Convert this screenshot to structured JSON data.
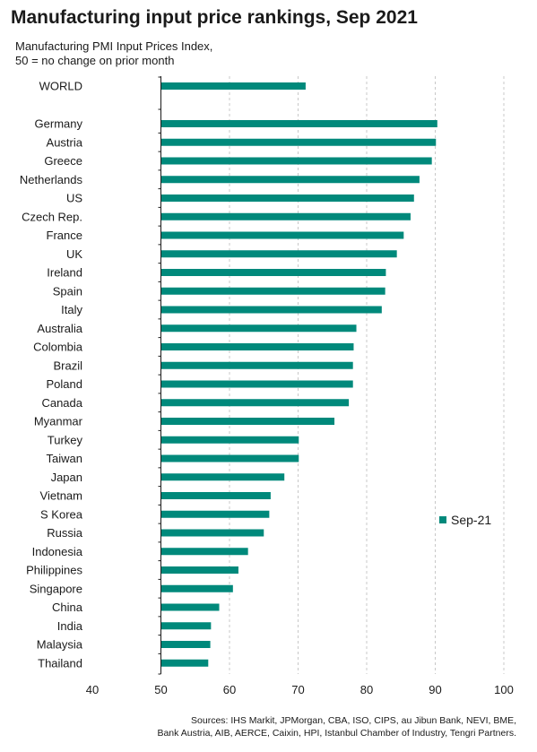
{
  "title": "Manufacturing input price rankings, Sep 2021",
  "subtitle": {
    "line1": "Manufacturing PMI Input Prices Index,",
    "line2": "50 = no change on prior month"
  },
  "source": {
    "line1": "Sources: IHS Markit, JPMorgan, CBA, ISO, CIPS, au Jibun Bank, NEVI, BME,",
    "line2": "Bank Austria, AIB, AERCE, Caixin, HPI, Istanbul Chamber of Industry, Tengri Partners."
  },
  "chart_data": {
    "type": "bar",
    "orientation": "horizontal",
    "categories": [
      "WORLD",
      "Germany",
      "Austria",
      "Greece",
      "Netherlands",
      "US",
      "Czech Rep.",
      "France",
      "UK",
      "Ireland",
      "Spain",
      "Italy",
      "Australia",
      "Colombia",
      "Brazil",
      "Poland",
      "Canada",
      "Myanmar",
      "Turkey",
      "Taiwan",
      "Japan",
      "Vietnam",
      "S Korea",
      "Russia",
      "Indonesia",
      "Philippines",
      "Singapore",
      "China",
      "India",
      "Malaysia",
      "Thailand"
    ],
    "series": [
      {
        "name": "Sep-21",
        "color": "#00897b",
        "values": [
          71.1,
          90.3,
          90.1,
          89.5,
          87.7,
          86.9,
          86.4,
          85.4,
          84.4,
          82.8,
          82.7,
          82.2,
          78.5,
          78.1,
          78.0,
          78.0,
          77.4,
          75.3,
          70.1,
          70.1,
          68.0,
          66.0,
          65.8,
          65.0,
          62.7,
          61.3,
          60.5,
          58.5,
          57.3,
          57.2,
          56.9
        ]
      }
    ],
    "xlim": [
      40,
      100
    ],
    "xticks": [
      40,
      50,
      60,
      70,
      80,
      90,
      100
    ],
    "axis_origin": 50,
    "grid": true,
    "legend_position": "right"
  }
}
